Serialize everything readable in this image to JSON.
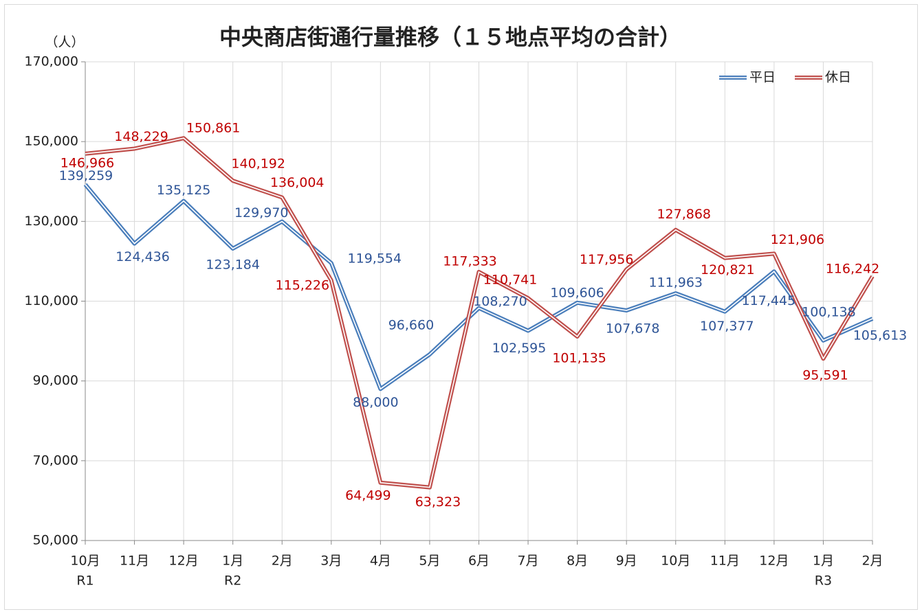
{
  "chart_data": {
    "type": "line",
    "title": "中央商店街通行量推移（１５地点平均の合計）",
    "ylabel": "（人）",
    "categories": [
      "10月",
      "11月",
      "12月",
      "1月",
      "2月",
      "3月",
      "4月",
      "5月",
      "6月",
      "7月",
      "8月",
      "9月",
      "10月",
      "11月",
      "12月",
      "1月",
      "2月"
    ],
    "category_groups": [
      "R1",
      null,
      null,
      "R2",
      null,
      null,
      null,
      null,
      null,
      null,
      null,
      null,
      null,
      null,
      null,
      "R3",
      null
    ],
    "series": [
      {
        "name": "平日",
        "color": "#4a7ebb",
        "label_color": "#2f5597",
        "values": [
          139259,
          124436,
          135125,
          123184,
          129970,
          119554,
          88000,
          96660,
          108270,
          102595,
          109606,
          107678,
          111963,
          107377,
          117445,
          100138,
          105613
        ],
        "value_labels": [
          "139,259",
          "124,436",
          "135,125",
          "123,184",
          "129,970",
          "119,554",
          "88,000",
          "96,660",
          "108,270",
          "102,595",
          "109,606",
          "107,678",
          "111,963",
          "107,377",
          "117,445",
          "100,138",
          "105,613"
        ]
      },
      {
        "name": "休日",
        "color": "#c0504d",
        "label_color": "#c00000",
        "values": [
          146966,
          148229,
          150861,
          140192,
          136004,
          115226,
          64499,
          63323,
          117333,
          110741,
          101135,
          117956,
          127868,
          120821,
          121906,
          95591,
          116242
        ],
        "value_labels": [
          "146,966",
          "148,229",
          "150,861",
          "140,192",
          "136,004",
          "115,226",
          "64,499",
          "63,323",
          "117,333",
          "110,741",
          "101,135",
          "117,956",
          "127,868",
          "120,821",
          "121,906",
          "95,591",
          "116,242"
        ]
      }
    ],
    "ylim": [
      50000,
      170000
    ],
    "yticks": [
      {
        "value": 50000,
        "label": "50,000"
      },
      {
        "value": 70000,
        "label": "70,000"
      },
      {
        "value": 90000,
        "label": "90,000"
      },
      {
        "value": 110000,
        "label": "110,000"
      },
      {
        "value": 130000,
        "label": "130,000"
      },
      {
        "value": 150000,
        "label": "150,000"
      },
      {
        "value": 170000,
        "label": "170,000"
      }
    ],
    "grid": true,
    "legend": "upper right"
  }
}
